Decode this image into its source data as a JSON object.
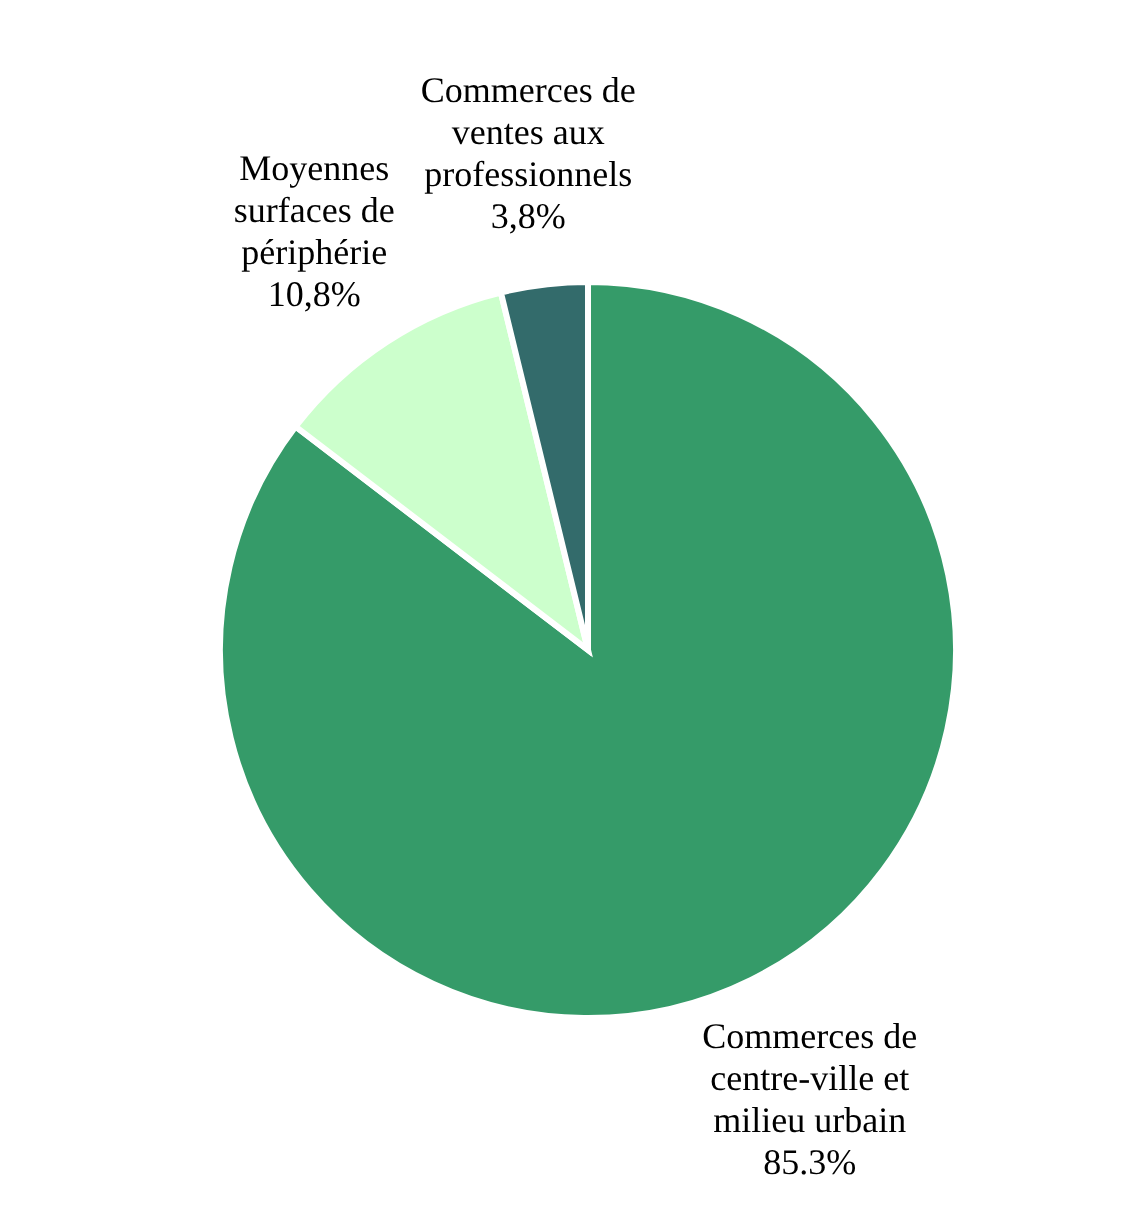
{
  "chart_data": {
    "type": "pie",
    "categories": [
      "Commerces de centre-ville et milieu urbain",
      "Moyennes surfaces de périphérie",
      "Commerces de ventes aux professionnels"
    ],
    "values": [
      85.3,
      10.8,
      3.8
    ],
    "colors": [
      "#359b69",
      "#ccffcc",
      "#336b6b"
    ],
    "value_labels": [
      "85.3%",
      "10,8%",
      "3,8%"
    ]
  }
}
